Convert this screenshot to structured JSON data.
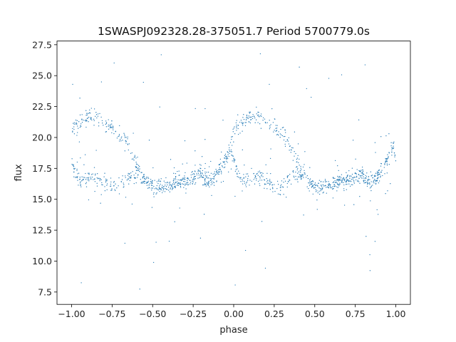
{
  "chart_data": {
    "type": "scatter",
    "title": "1SWASPJ092328.28-375051.7 Period 5700779.0s",
    "xlabel": "phase",
    "ylabel": "flux",
    "xlim": [
      -1.09,
      1.09
    ],
    "ylim": [
      6.5,
      27.8
    ],
    "xticks": [
      -1.0,
      -0.75,
      -0.5,
      -0.25,
      0.0,
      0.25,
      0.5,
      0.75,
      1.0
    ],
    "xtick_labels": [
      "−1.00",
      "−0.75",
      "−0.50",
      "−0.25",
      "0.00",
      "0.25",
      "0.50",
      "0.75",
      "1.00"
    ],
    "yticks": [
      7.5,
      10.0,
      12.5,
      15.0,
      17.5,
      20.0,
      22.5,
      25.0,
      27.5
    ],
    "ytick_labels": [
      "7.5",
      "10.0",
      "12.5",
      "15.0",
      "17.5",
      "20.0",
      "22.5",
      "25.0",
      "27.5"
    ],
    "grid": false,
    "legend": "none",
    "marker_color": "#1f77b4",
    "phase_folded_repeat": true,
    "series": [
      {
        "x": [
          -1.0,
          -0.98,
          -0.96,
          -0.94,
          -0.92,
          -0.9,
          -0.88,
          -0.86,
          -0.84,
          -0.82,
          -0.8,
          -0.78,
          -0.76,
          -0.74,
          -0.72,
          -0.7,
          -0.68,
          -0.66,
          -0.64,
          -0.62,
          -0.6,
          -0.58,
          -0.56,
          -0.54,
          -0.52,
          -0.5,
          -0.48,
          -0.46,
          -0.44,
          -0.42,
          -0.4,
          -0.38,
          -0.36,
          -0.34,
          -0.32,
          -0.3,
          -0.28,
          -0.26,
          -0.24,
          -0.22,
          -0.2,
          -0.18,
          -0.16,
          -0.14,
          -0.12,
          -0.1,
          -0.08,
          -0.06,
          -0.04,
          -0.02
        ],
        "y": [
          20.6,
          20.9,
          21.2,
          21.4,
          21.5,
          21.6,
          21.7,
          21.6,
          21.5,
          21.4,
          21.2,
          21.0,
          20.8,
          20.6,
          20.4,
          20.2,
          20.0,
          19.6,
          19.0,
          18.4,
          17.8,
          17.3,
          16.9,
          16.6,
          16.3,
          16.1,
          16.0,
          16.0,
          16.0,
          16.1,
          16.2,
          16.3,
          16.4,
          16.4,
          16.5,
          16.5,
          16.6,
          16.7,
          16.9,
          17.0,
          17.0,
          16.6,
          16.3,
          16.5,
          16.8,
          17.2,
          17.6,
          18.0,
          18.5,
          19.2
        ],
        "y_lower_branch": [
          18.0,
          17.2,
          16.7,
          16.5,
          16.6,
          16.8,
          16.9,
          16.8,
          16.7,
          16.6,
          16.4,
          16.2,
          16.0,
          16.0,
          15.9,
          16.0,
          16.3,
          16.6,
          16.9,
          17.0,
          17.0,
          16.9,
          16.7,
          16.6,
          16.3,
          16.1,
          16.0,
          16.0,
          16.0,
          16.1,
          16.2,
          16.3,
          16.4,
          16.4,
          16.5,
          16.5,
          16.6,
          16.7,
          16.9,
          17.0,
          17.0,
          16.6,
          16.3,
          16.5,
          16.8,
          17.2,
          17.6,
          18.0,
          18.5,
          19.2
        ]
      }
    ]
  }
}
